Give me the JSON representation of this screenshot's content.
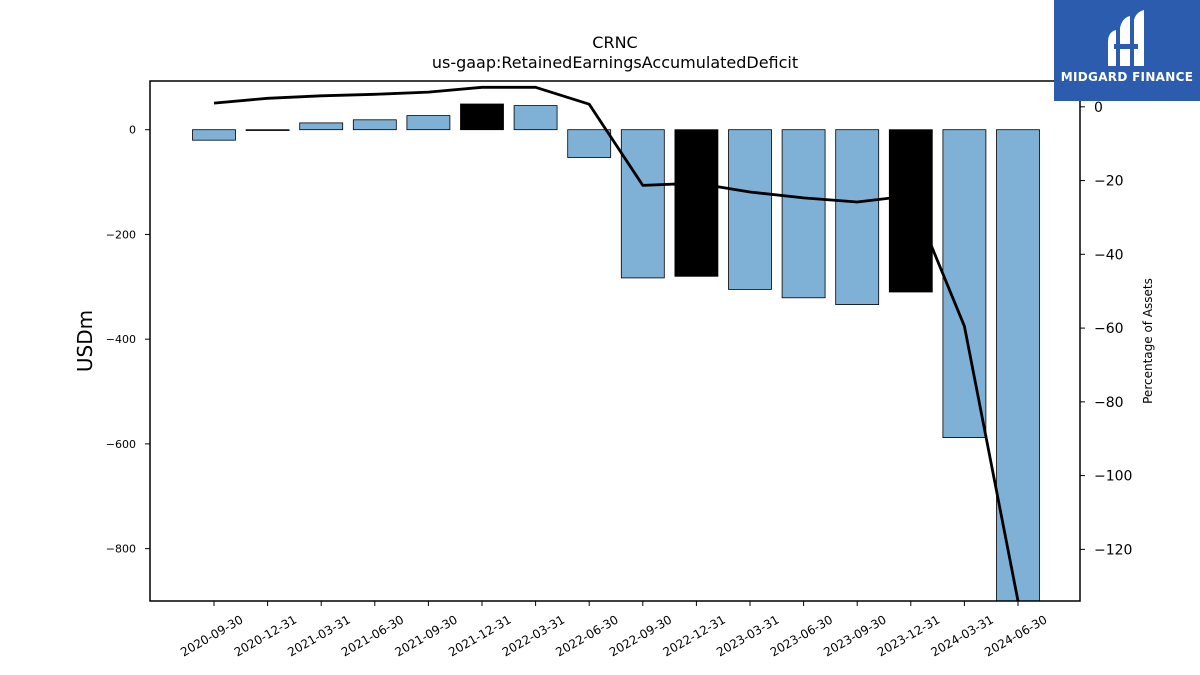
{
  "chart_data": {
    "type": "bar",
    "title": "CRNC",
    "subtitle": "us-gaap:RetainedEarningsAccumulatedDeficit",
    "ylabel": "USDm",
    "y2label": "Percentage of Assets",
    "categories": [
      "2020-09-30",
      "2020-12-31",
      "2021-03-31",
      "2021-06-30",
      "2021-09-30",
      "2021-12-31",
      "2022-03-31",
      "2022-06-30",
      "2022-09-30",
      "2022-12-31",
      "2023-03-31",
      "2023-06-30",
      "2023-09-30",
      "2023-12-31",
      "2024-03-31",
      "2024-06-30"
    ],
    "values": [
      -20,
      -1,
      13,
      19,
      27,
      49,
      46,
      -53,
      -283,
      -280,
      -305,
      -321,
      -334,
      -310,
      -588,
      -905
    ],
    "bar_colors": [
      "#7fb0d5",
      "#7fb0d5",
      "#7fb0d5",
      "#7fb0d5",
      "#7fb0d5",
      "#000000",
      "#7fb0d5",
      "#7fb0d5",
      "#7fb0d5",
      "#000000",
      "#7fb0d5",
      "#7fb0d5",
      "#7fb0d5",
      "#000000",
      "#7fb0d5",
      "#7fb0d5"
    ],
    "ylim": [
      -900,
      93
    ],
    "yticks": [
      0,
      -200,
      -400,
      -600,
      -800
    ],
    "line_series": {
      "axis": "right",
      "color": "#000000",
      "values": [
        1,
        2.3,
        3,
        3.4,
        4,
        5.3,
        5.3,
        0.7,
        -21.3,
        -20.7,
        -23.1,
        -24.7,
        -25.8,
        -24.1,
        -59.5,
        -134
      ]
    },
    "y2lim": [
      -134,
      7
    ],
    "y2ticks": [
      0,
      -20,
      -40,
      -60,
      -80,
      -100,
      -120
    ],
    "grid": false
  },
  "logo": {
    "text": "MIDGARD FINANCE"
  },
  "colors": {
    "bar": "#7fb0d5",
    "highlight_bar": "#000000",
    "logo_bg": "#2b5cad"
  }
}
